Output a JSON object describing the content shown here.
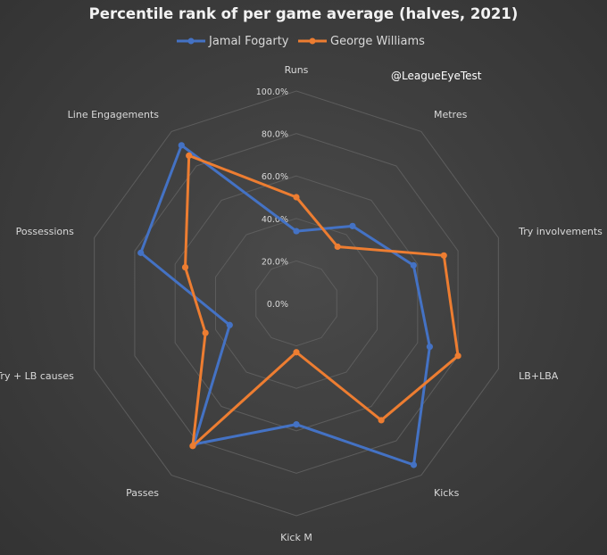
{
  "chart_data": {
    "type": "radar",
    "title": "Percentile rank of per game average (halves, 2021)",
    "watermark": "@LeagueEyeTest",
    "categories": [
      "Runs",
      "Metres",
      "Try involvements",
      "LB+LBA",
      "Kicks",
      "Kick M",
      "Passes",
      "Try + LB causes",
      "Possessions",
      "Line Engagements"
    ],
    "tick_labels": [
      "0.0%",
      "20.0%",
      "40.0%",
      "60.0%",
      "80.0%",
      "100.0%"
    ],
    "rlim": [
      0,
      100
    ],
    "grid": true,
    "legend_position": "top",
    "series": [
      {
        "name": "Jamal Fogarty",
        "color": "#4472c4",
        "values": [
          34,
          45,
          58,
          66,
          94,
          57,
          82,
          33,
          77,
          92
        ]
      },
      {
        "name": "George Williams",
        "color": "#ed7d31",
        "values": [
          50,
          33,
          73,
          80,
          68,
          23,
          83,
          45,
          55,
          86
        ]
      }
    ]
  }
}
